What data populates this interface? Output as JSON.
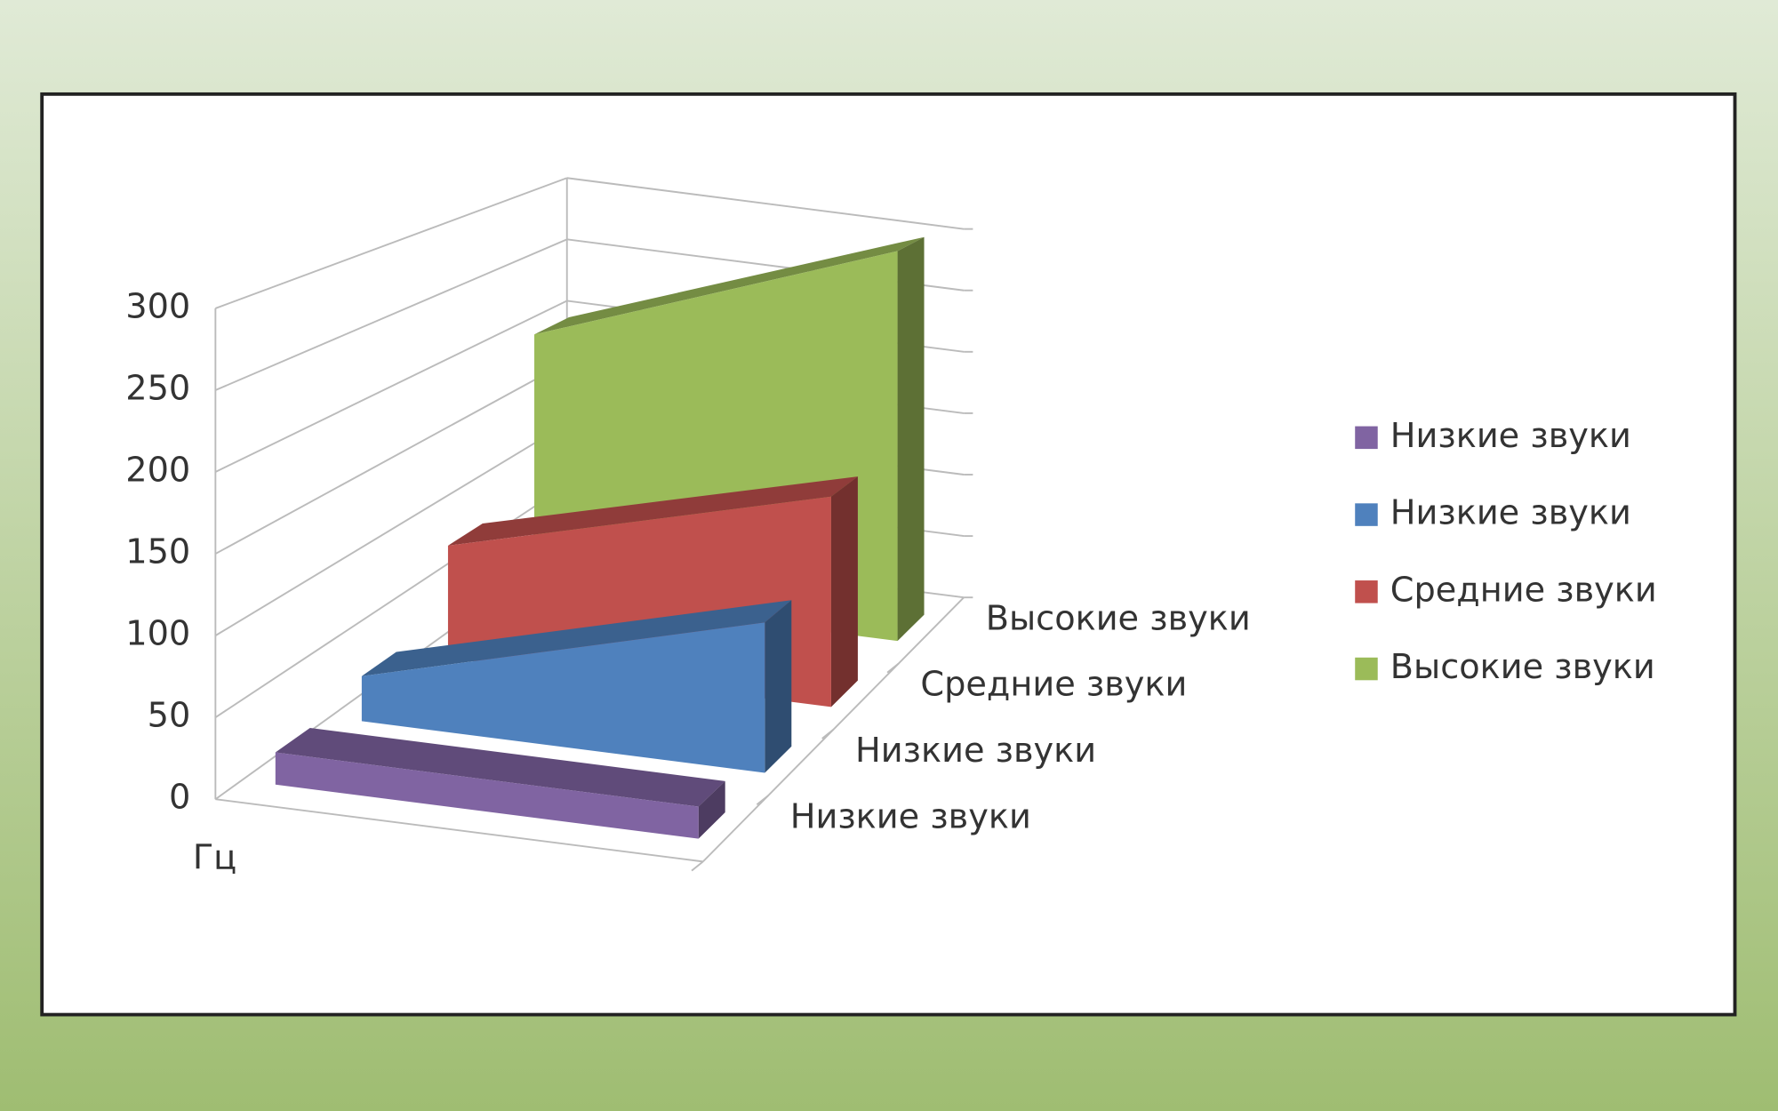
{
  "chart_data": {
    "type": "area3d",
    "y_axis_label": "Гц",
    "categories": [
      null,
      null
    ],
    "series": [
      {
        "name": "Низкие звуки",
        "color": "#8064a2",
        "values": [
          20,
          20
        ]
      },
      {
        "name": "Низкие звуки",
        "color": "#4f81bd",
        "values": [
          30,
          100
        ]
      },
      {
        "name": "Средние звуки",
        "color": "#c0504d",
        "values": [
          80,
          150
        ]
      },
      {
        "name": "Высокие звуки",
        "color": "#9bbb59",
        "values": [
          200,
          300
        ]
      }
    ],
    "ylim": [
      0,
      300
    ],
    "yticks": [
      0,
      50,
      100,
      150,
      200,
      250,
      300
    ],
    "grid": true,
    "legend": "right"
  }
}
